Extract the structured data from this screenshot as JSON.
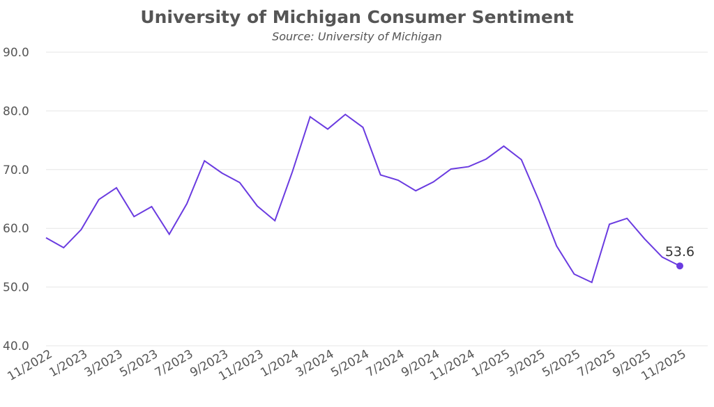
{
  "chart_data": {
    "type": "line",
    "title": "University of Michigan Consumer Sentiment",
    "subtitle": "Source: University of Michigan",
    "xlabel": "",
    "ylabel": "",
    "ylim": [
      40,
      90
    ],
    "yticks": [
      "40.0",
      "50.0",
      "60.0",
      "70.0",
      "80.0",
      "90.0"
    ],
    "ytick_values": [
      40,
      50,
      60,
      70,
      80,
      90
    ],
    "xtick_labels": [
      "11/2022",
      "1/2023",
      "3/2023",
      "5/2023",
      "7/2023",
      "9/2023",
      "11/2023",
      "1/2024",
      "3/2024",
      "5/2024",
      "7/2024",
      "9/2024",
      "11/2024",
      "1/2025",
      "3/2025",
      "5/2025",
      "7/2025",
      "9/2025",
      "11/2025"
    ],
    "grid": true,
    "series": [
      {
        "name": "Consumer Sentiment",
        "color": "#6a3be0",
        "values": [
          58.4,
          56.7,
          59.8,
          64.9,
          66.9,
          62.0,
          63.7,
          59.0,
          64.2,
          71.5,
          69.4,
          67.8,
          63.8,
          61.3,
          69.7,
          79.0,
          76.9,
          79.4,
          77.2,
          69.1,
          68.2,
          66.4,
          67.9,
          70.1,
          70.5,
          71.8,
          74.0,
          71.7,
          64.7,
          57.0,
          52.2,
          50.8,
          60.7,
          61.7,
          58.2,
          55.1,
          53.6
        ]
      }
    ],
    "last_label": "53.6"
  }
}
